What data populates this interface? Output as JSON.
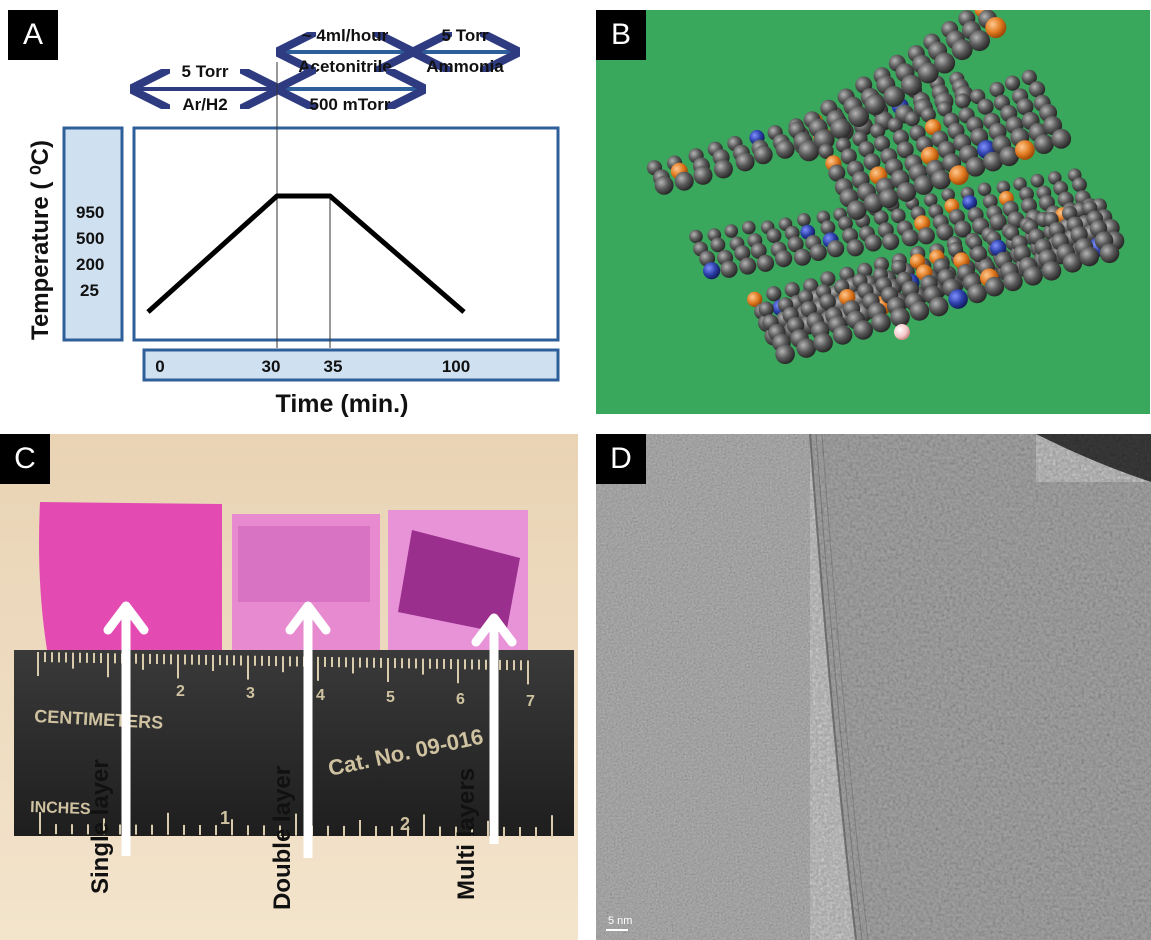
{
  "panel_a": {
    "label": "A",
    "stage_arrows": [
      {
        "torr": "5 Torr",
        "gas": "Ar/H2"
      },
      {
        "torr": "~ 4ml/hour",
        "gas": "Acetonitrile"
      },
      {
        "torr": "5 Torr",
        "gas": "Ammonia"
      },
      {
        "torr": "500 mTorr",
        "gas": ""
      }
    ],
    "y_label": "Temperature ( ⁰C)",
    "y_ticks": [
      "950",
      "500",
      "200",
      "25"
    ],
    "x_ticks": [
      "0",
      "30",
      "35",
      "100"
    ],
    "x_label": "Time (min.)",
    "colors": {
      "box_border": "#2e5f9a",
      "box_fill": "#cfe0f0",
      "arrow": "#2e3b80"
    }
  },
  "chart_data": {
    "type": "line",
    "xlabel": "Time (min.)",
    "ylabel": "Temperature ( ⁰C)",
    "x": [
      0,
      30,
      35,
      100
    ],
    "series": [
      {
        "values": [
          25,
          950,
          950,
          25
        ]
      }
    ]
  },
  "panel_b": {
    "label": "B",
    "description_colors": {
      "background": "#3aa85c",
      "carbon": "#555555",
      "nitrogen": "#2b3fa8",
      "oxygen": "#e07a20",
      "hydrogen": "#f2c6c6"
    }
  },
  "panel_c": {
    "label": "C",
    "samples": [
      "Single layer",
      "Double  layer",
      "Multi layers"
    ],
    "ruler": {
      "top_text": "CENTIMETERS",
      "bottom_text": "INCHES",
      "catalog": "Cat. No. 09-016",
      "cm_numbers": [
        "2",
        "3",
        "4",
        "5",
        "6",
        "7"
      ],
      "inch_numbers": [
        "1",
        "2"
      ]
    }
  },
  "panel_d": {
    "label": "D",
    "scale_bar": "5 nm"
  }
}
